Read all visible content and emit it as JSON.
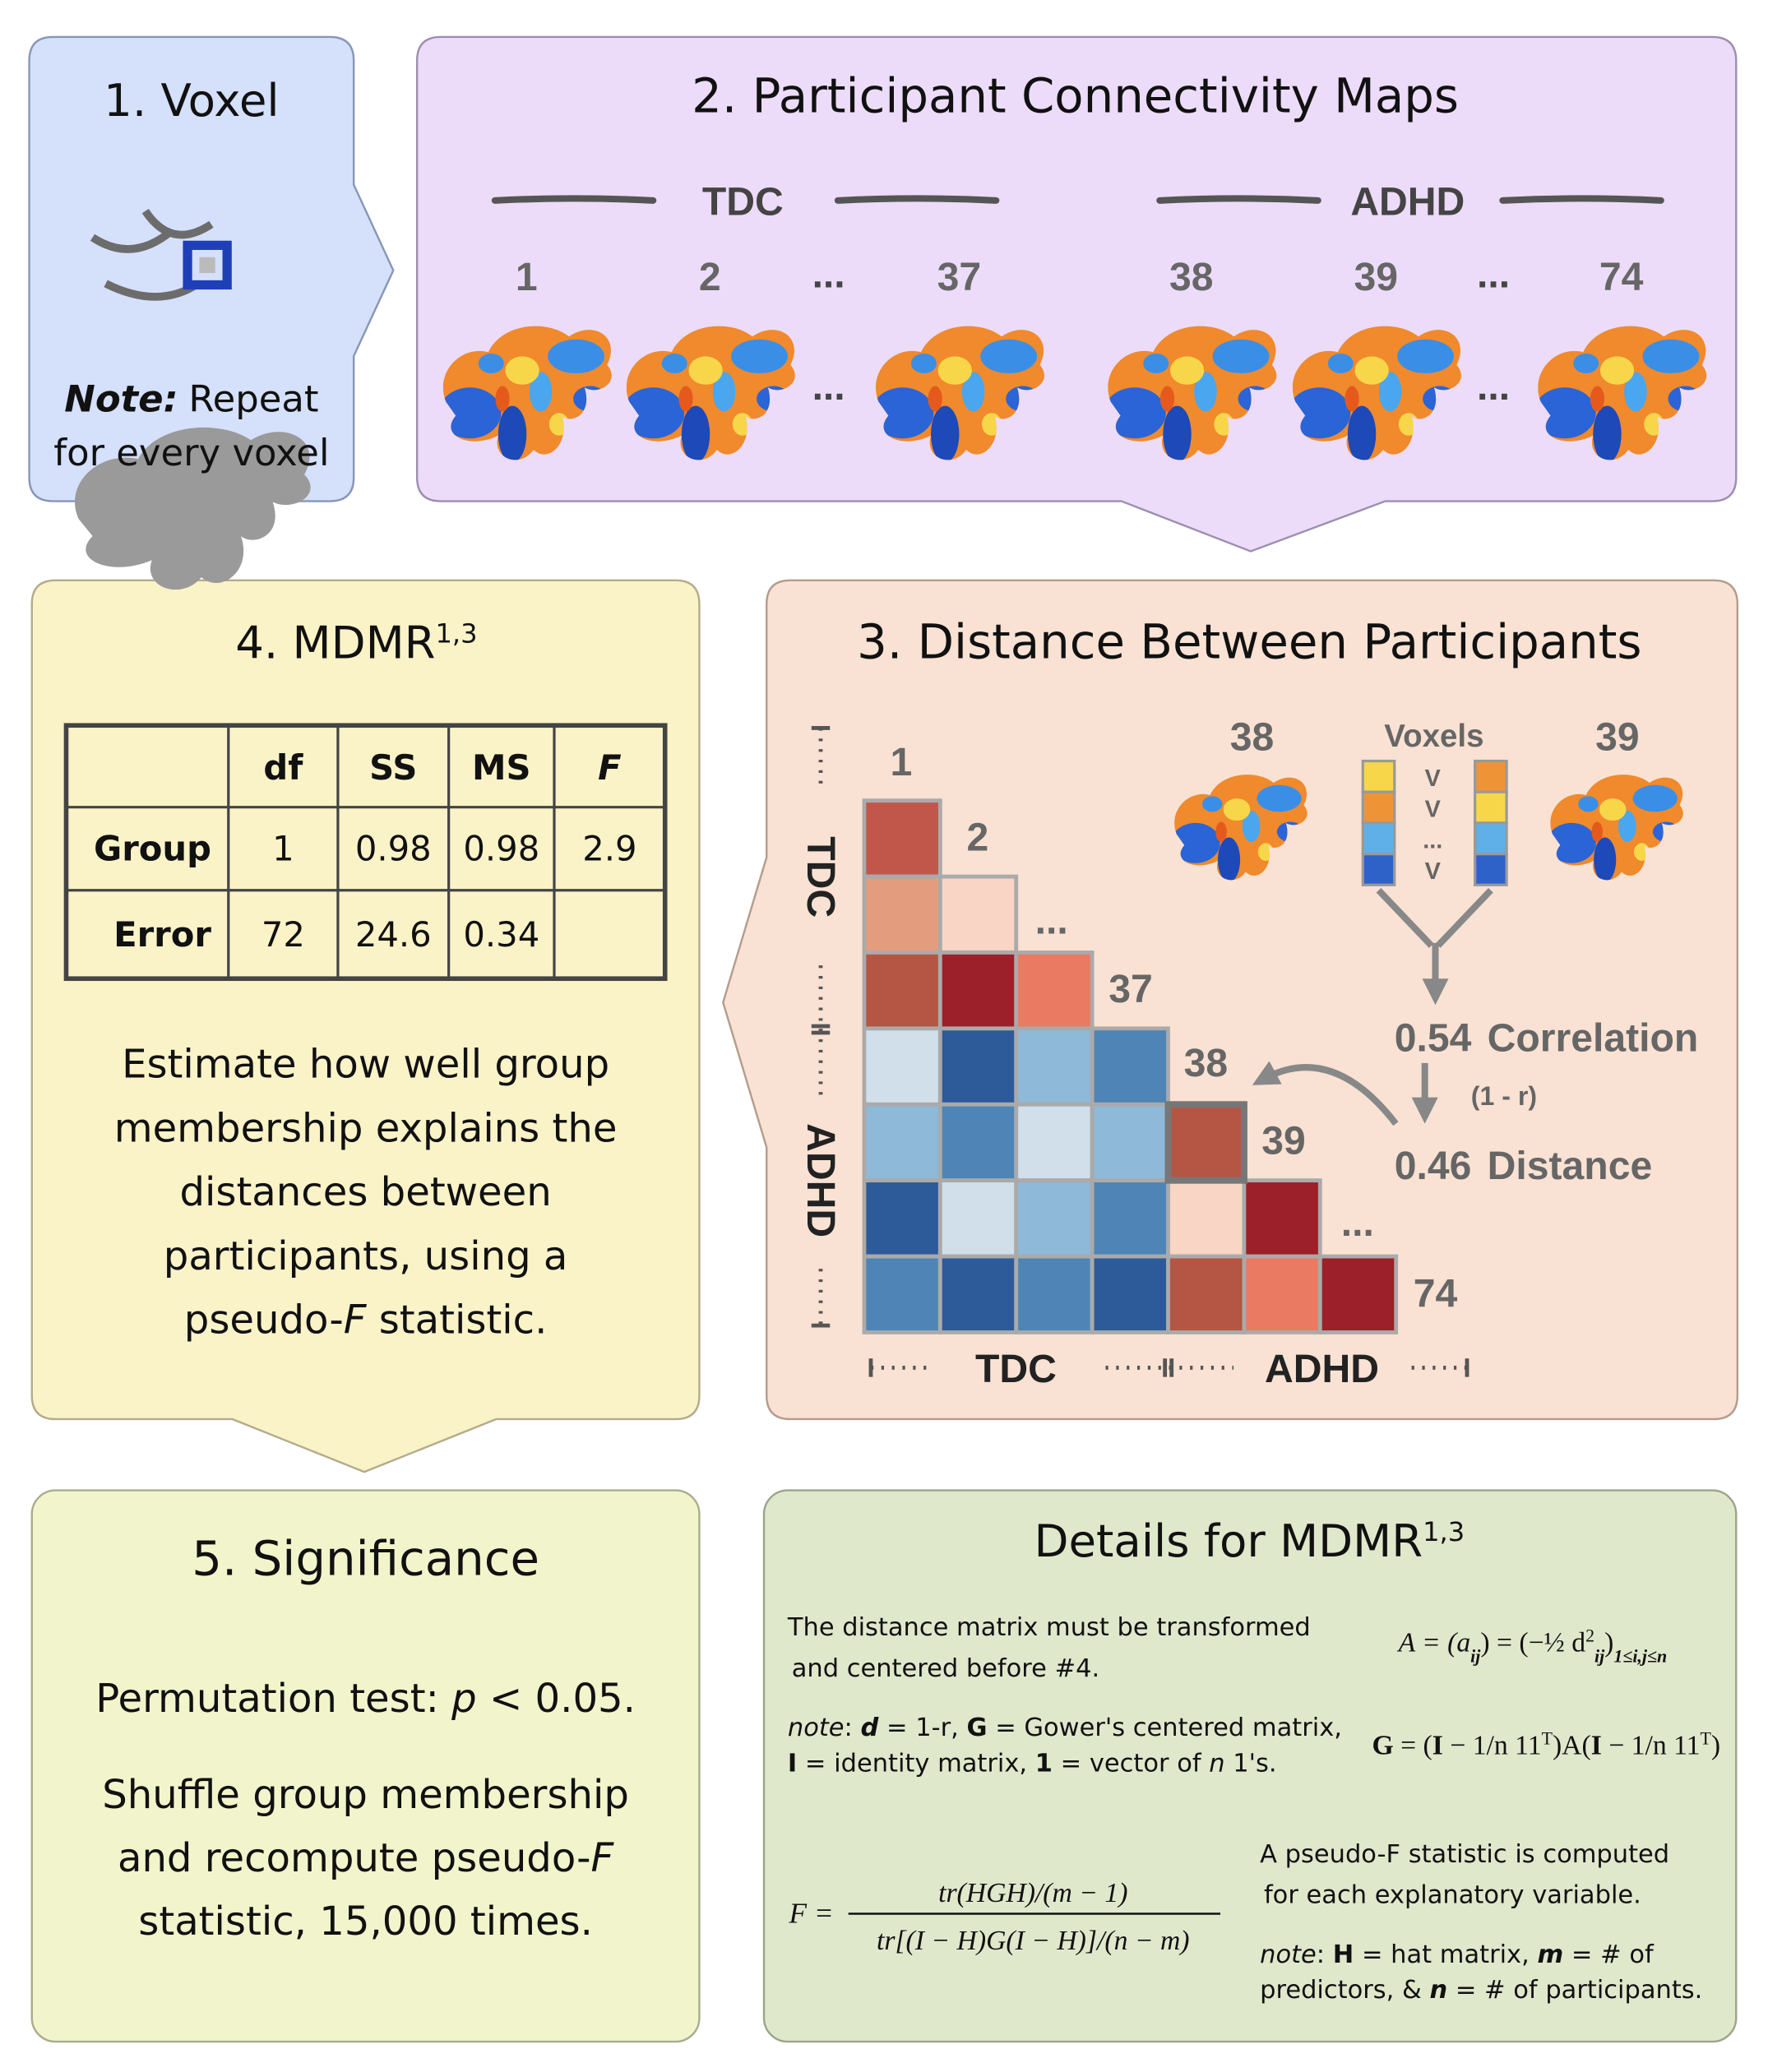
{
  "voxel": {
    "title": "1. Voxel",
    "note_label": "Note:",
    "note_lines": [
      "Repeat",
      "for every voxel"
    ]
  },
  "maps": {
    "title": "2. Participant Connectivity Maps",
    "groups": [
      {
        "name": "TDC",
        "ids": [
          "1",
          "2",
          "37"
        ]
      },
      {
        "name": "ADHD",
        "ids": [
          "38",
          "39",
          "74"
        ]
      }
    ],
    "ellipsis": "..."
  },
  "mdmr": {
    "title": "4. MDMR",
    "title_sup": "1,3",
    "table": {
      "header": [
        "df",
        "SS",
        "MS",
        "F"
      ],
      "rows": [
        [
          "Group",
          "1",
          "0.98",
          "0.98",
          "2.9"
        ],
        [
          "Error",
          "72",
          "24.6",
          "0.34"
        ]
      ]
    },
    "description": [
      "Estimate how well group",
      "membership explains the",
      "distances between",
      "participants, using a"
    ],
    "description_last": [
      "pseudo-",
      "F",
      " statistic."
    ]
  },
  "distance": {
    "title": "3. Distance Between Participants",
    "matrix_labels": [
      "1",
      "2",
      "...",
      "37",
      "38",
      "39",
      "...",
      "74"
    ],
    "axis_groups": [
      "TDC",
      "ADHD"
    ],
    "example": {
      "ids": [
        "38",
        "39"
      ],
      "voxels_label": "Voxels",
      "voxel_marks": [
        "V",
        "V",
        "...",
        "V"
      ],
      "correlation_value": "0.54",
      "correlation_label": "Correlation",
      "transform": "(1 - r)",
      "distance_value": "0.46",
      "distance_label": "Distance"
    }
  },
  "significance": {
    "title": "5. Significance",
    "test": [
      "Permutation test: ",
      "p",
      " < 0.05."
    ],
    "line1": "Shuffle group membership",
    "line2": [
      "and recompute pseudo-",
      "F"
    ],
    "line3": "statistic, 15,000 times."
  },
  "details": {
    "title": "Details for MDMR",
    "title_sup": "1,3",
    "intro": [
      "The distance matrix must be transformed",
      "and centered before #4."
    ],
    "note1": [
      "note",
      ": ",
      "d",
      " = 1-r, ",
      "G",
      " = Gower's centered matrix,"
    ],
    "note2": [
      "I",
      " = identity matrix, ",
      "1",
      " = vector of ",
      "n",
      " 1's."
    ],
    "formula_a": [
      "A = (a",
      "ij",
      ") = (−½ d",
      "2",
      "ij",
      ")",
      "1≤i,j≤n"
    ],
    "formula_g": [
      "G",
      " = (",
      "I",
      " − 1/n 11",
      "T",
      ")A(",
      "I",
      " − 1/n 11",
      "T",
      ")"
    ],
    "formula_f": {
      "lhs": "F =",
      "numerator": "tr(HGH)/(m − 1)",
      "denominator": "tr[(I − H)G(I − H)]/(n − m)"
    },
    "pseudo": [
      "A pseudo-F statistic is computed",
      "for each explanatory variable."
    ],
    "note3": [
      "note",
      ": ",
      "H",
      " = hat matrix, ",
      "m",
      " = # of"
    ],
    "note4": [
      "predictors, & ",
      "n",
      " = # of participants."
    ]
  }
}
